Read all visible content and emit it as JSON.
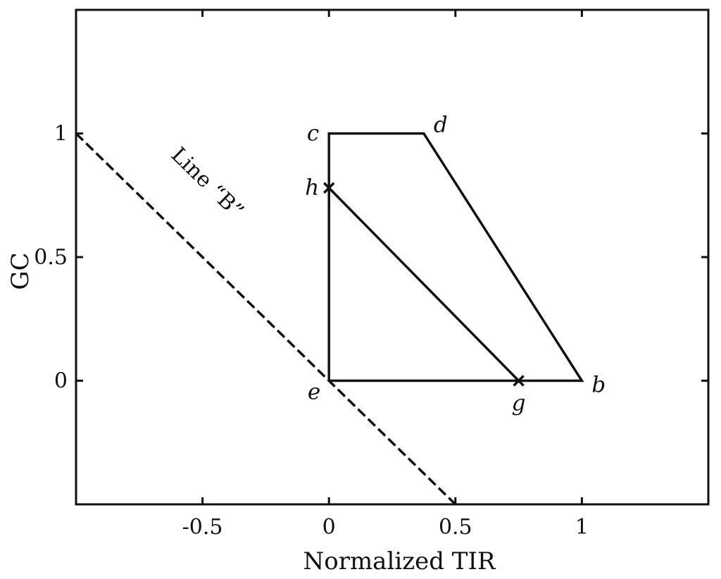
{
  "chart_data": {
    "type": "line",
    "title": "",
    "xlabel": "Normalized TIR",
    "ylabel": "GC",
    "xlim": [
      -1,
      1.5
    ],
    "ylim": [
      -0.5,
      1.5
    ],
    "x_ticks": [
      -0.5,
      0,
      0.5,
      1
    ],
    "x_tick_labels": [
      "-0.5",
      "0",
      "0.5",
      "1"
    ],
    "y_ticks": [
      0,
      0.5,
      1
    ],
    "y_tick_labels": [
      "0",
      "0.5",
      "1"
    ],
    "grid": false,
    "series": [
      {
        "style": "solid",
        "x": [
          0,
          0,
          0.375,
          1,
          0
        ],
        "y": [
          0,
          1,
          1,
          0,
          0
        ]
      },
      {
        "style": "solid",
        "x": [
          0,
          0.75
        ],
        "y": [
          0.78,
          0
        ]
      },
      {
        "style": "dashed",
        "x": [
          -1,
          0.5
        ],
        "y": [
          1,
          -0.5
        ]
      }
    ],
    "points": [
      {
        "label": "b",
        "x": 1,
        "y": 0,
        "marker": "none",
        "label_pos": "right"
      },
      {
        "label": "c",
        "x": 0,
        "y": 1,
        "marker": "none",
        "label_pos": "left"
      },
      {
        "label": "d",
        "x": 0.375,
        "y": 1,
        "marker": "none",
        "label_pos": "upper-right"
      },
      {
        "label": "e",
        "x": 0,
        "y": 0,
        "marker": "none",
        "label_pos": "lower-left"
      },
      {
        "label": "g",
        "x": 0.75,
        "y": 0,
        "marker": "x",
        "label_pos": "below"
      },
      {
        "label": "h",
        "x": 0,
        "y": 0.78,
        "marker": "x",
        "label_pos": "left"
      }
    ],
    "annotations": [
      {
        "text": "Line “B”",
        "x": -0.5,
        "y": 0.78
      }
    ]
  }
}
